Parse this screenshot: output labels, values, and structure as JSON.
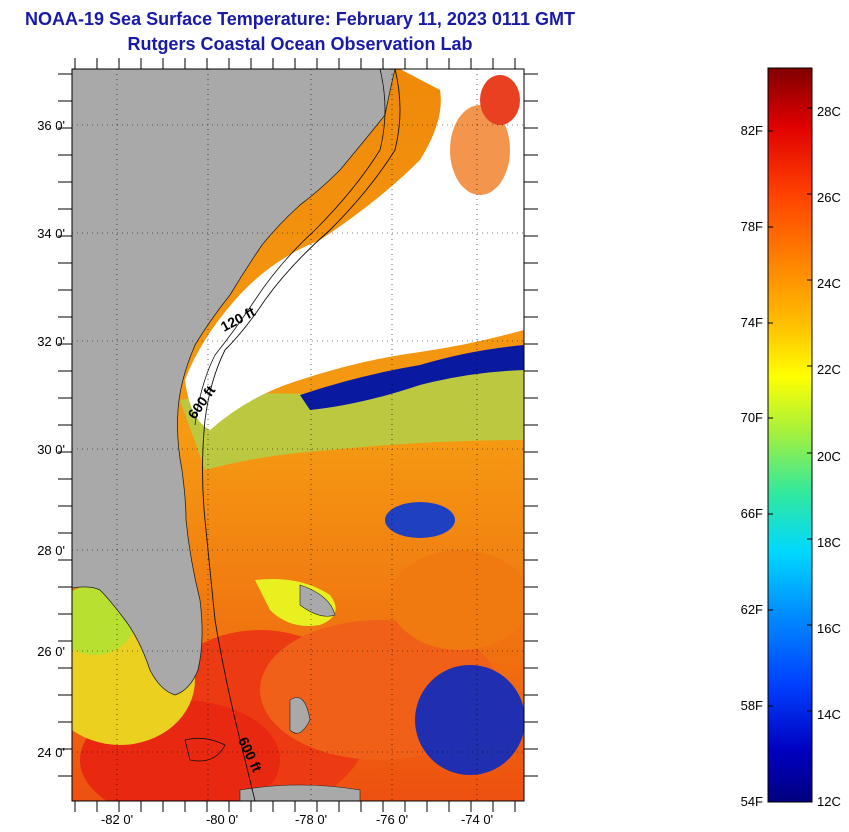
{
  "header": {
    "title": "NOAA-19 Sea Surface Temperature:  February 11, 2023 0111 GMT",
    "subtitle": "Rutgers Coastal Ocean Observation Lab"
  },
  "map": {
    "latitude_labels": [
      "36 0'",
      "34 0'",
      "32 0'",
      "30 0'",
      "28 0'",
      "26 0'",
      "24 0'"
    ],
    "longitude_labels": [
      "-82 0'",
      "-80 0'",
      "-78 0'",
      "-76 0'",
      "-74 0'"
    ],
    "contour_labels": [
      "120 ft",
      "600 ft",
      "600 ft"
    ],
    "colors": {
      "land": "#a9a9a9",
      "cloud": "#ffffff",
      "warm": "#ef3a10",
      "cool": "#000096"
    }
  },
  "colorbar": {
    "fahrenheit_labels": [
      "82F",
      "78F",
      "74F",
      "70F",
      "66F",
      "62F",
      "58F",
      "54F"
    ],
    "celsius_labels": [
      "28C",
      "26C",
      "24C",
      "22C",
      "20C",
      "18C",
      "16C",
      "14C",
      "12C"
    ],
    "gradient_colors": [
      "#800000",
      "#e00000",
      "#ff4000",
      "#ff8000",
      "#ffc000",
      "#ffff00",
      "#a0f040",
      "#30e8a0",
      "#00d8ff",
      "#0090ff",
      "#0040ff",
      "#0000c0",
      "#000080"
    ]
  }
}
